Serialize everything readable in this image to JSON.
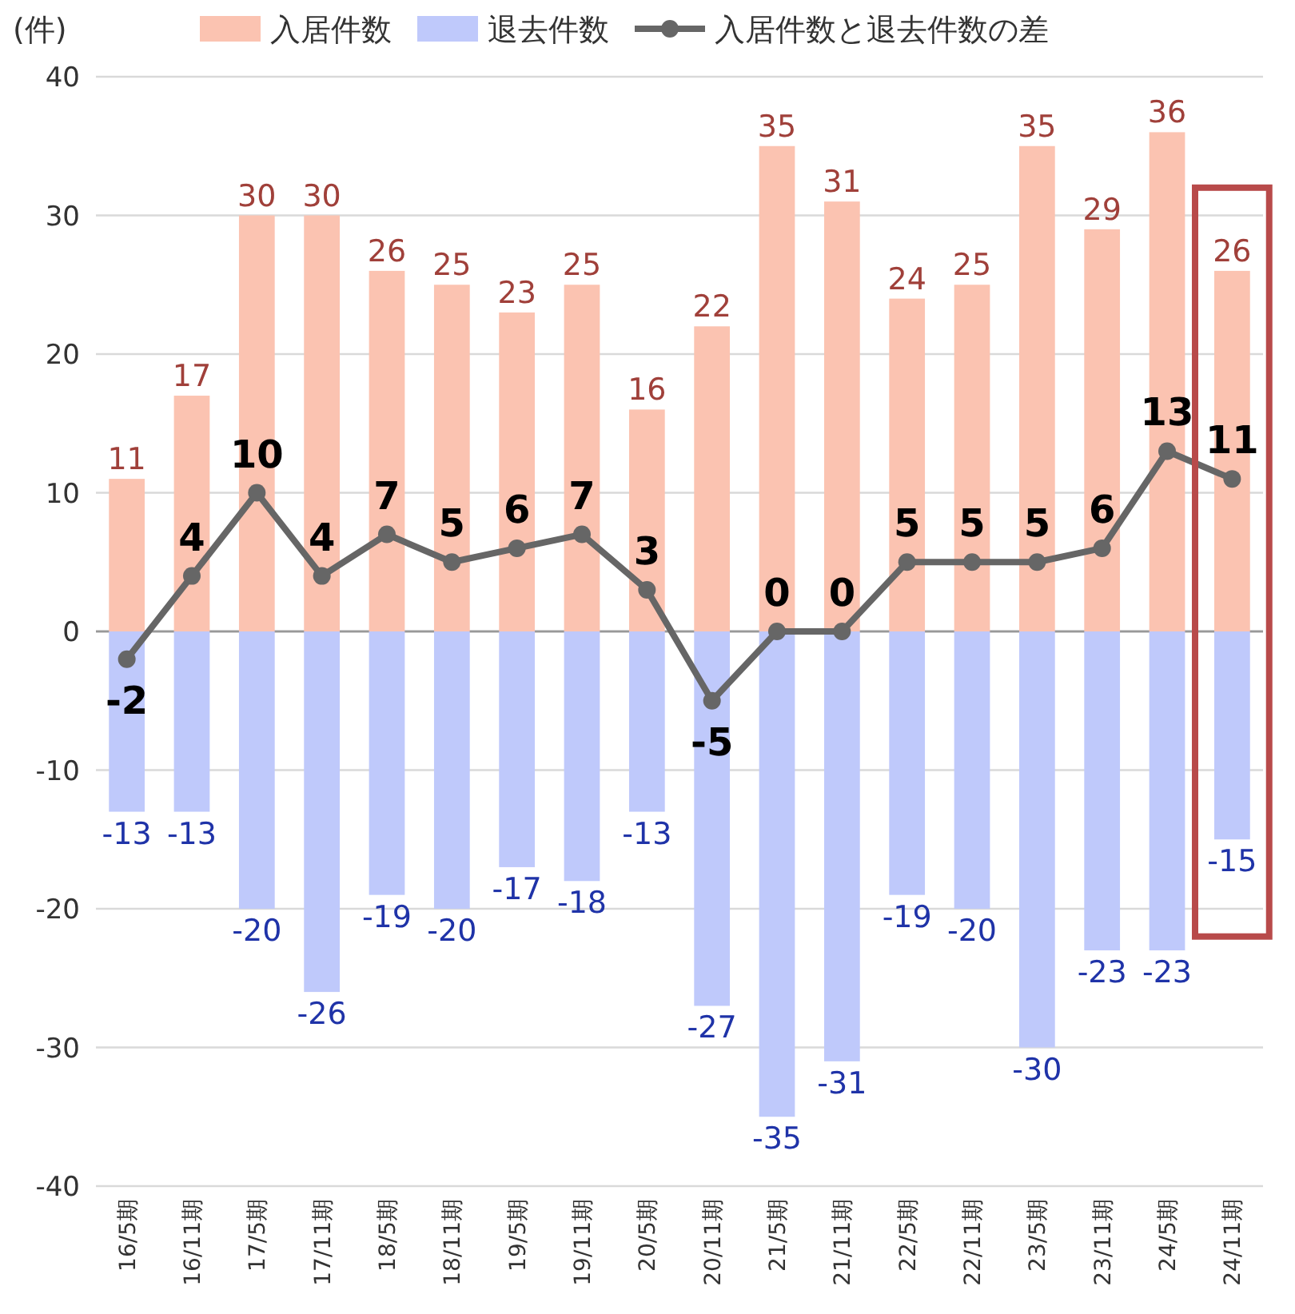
{
  "chart_data": {
    "type": "bar",
    "ylabel": "(件)",
    "categories": [
      "16/5期",
      "16/11期",
      "17/5期",
      "17/11期",
      "18/5期",
      "18/11期",
      "19/5期",
      "19/11期",
      "20/5期",
      "20/11期",
      "21/5期",
      "21/11期",
      "22/5期",
      "22/11期",
      "23/5期",
      "23/11期",
      "24/5期",
      "24/11期"
    ],
    "series": [
      {
        "name": "入居件数",
        "color": "#fbc3b1",
        "values": [
          11,
          17,
          30,
          30,
          26,
          25,
          23,
          25,
          16,
          22,
          35,
          31,
          24,
          25,
          35,
          29,
          36,
          26
        ]
      },
      {
        "name": "退去件数",
        "color": "#bfc9fb",
        "values": [
          -13,
          -13,
          -20,
          -26,
          -19,
          -20,
          -17,
          -18,
          -13,
          -27,
          -35,
          -31,
          -19,
          -20,
          -30,
          -23,
          -23,
          -15
        ]
      },
      {
        "name": "入居件数と退去件数の差",
        "type": "line",
        "color": "#666666",
        "marker": "circle",
        "values": [
          -2,
          4,
          10,
          4,
          7,
          5,
          6,
          7,
          3,
          -5,
          0,
          0,
          5,
          5,
          5,
          6,
          13,
          11
        ]
      }
    ],
    "stacked": true,
    "ylim": [
      -40,
      40
    ],
    "yticks": [
      -40,
      -30,
      -20,
      -10,
      0,
      10,
      20,
      30,
      40
    ],
    "grid": "y",
    "legend": "top",
    "data_labels": true
  }
}
